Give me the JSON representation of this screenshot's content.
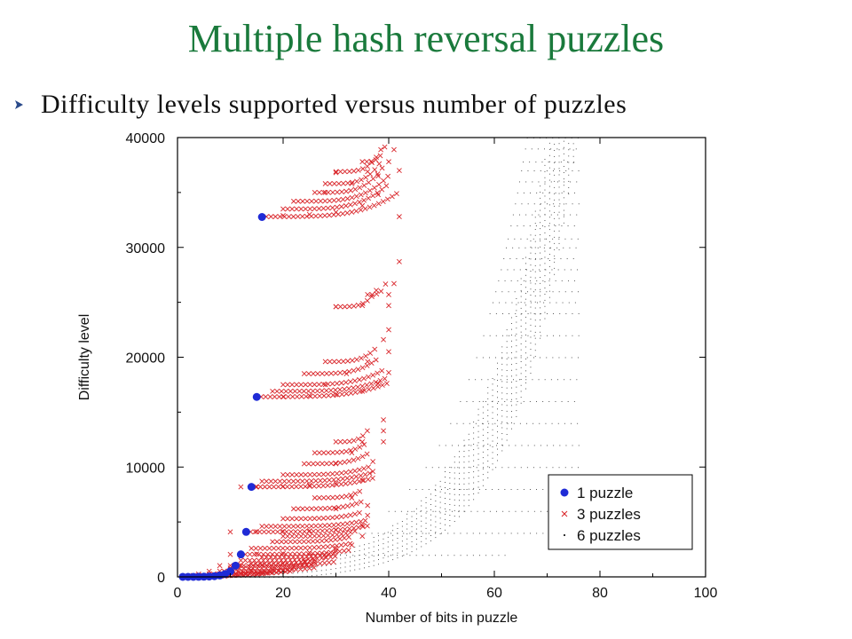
{
  "slide": {
    "title": "Multiple hash reversal puzzles",
    "bullet": "Difficulty levels supported versus number of puzzles"
  },
  "colors": {
    "title": "#1a7a3c",
    "series_1": "#1f2bd6",
    "series_3": "#d9262b",
    "series_6": "#333333",
    "bullet": "#2a4a8a"
  },
  "chart_data": {
    "type": "scatter",
    "title": "",
    "xlabel": "Number of bits in puzzle",
    "ylabel": "Difficulty level",
    "xlim": [
      0,
      100
    ],
    "ylim": [
      0,
      40000
    ],
    "xticks": [
      0,
      20,
      40,
      60,
      80,
      100
    ],
    "yticks": [
      0,
      10000,
      20000,
      30000,
      40000
    ],
    "grid": false,
    "legend_position": "bottom-right",
    "series": [
      {
        "name": "1 puzzle",
        "marker": "circle",
        "points": [
          [
            1,
            1
          ],
          [
            2,
            2
          ],
          [
            3,
            4
          ],
          [
            4,
            8
          ],
          [
            5,
            16
          ],
          [
            6,
            32
          ],
          [
            7,
            64
          ],
          [
            8,
            128
          ],
          [
            9,
            256
          ],
          [
            10,
            512
          ],
          [
            11,
            1024
          ],
          [
            12,
            2048
          ],
          [
            13,
            4096
          ],
          [
            14,
            8192
          ],
          [
            15,
            16384
          ],
          [
            16,
            32768
          ]
        ]
      },
      {
        "name": "3 puzzles",
        "marker": "x",
        "points": [
          [
            16,
            32768
          ],
          [
            20,
            32900
          ],
          [
            25,
            33000
          ],
          [
            30,
            33200
          ],
          [
            35,
            33800
          ],
          [
            38,
            34800
          ],
          [
            28,
            35000
          ],
          [
            33,
            35800
          ],
          [
            38,
            36500
          ],
          [
            40,
            37800
          ],
          [
            41,
            38900
          ],
          [
            42,
            37000
          ],
          [
            30,
            36800
          ],
          [
            36,
            36900
          ],
          [
            42,
            32800
          ],
          [
            42,
            28700
          ],
          [
            41,
            26700
          ],
          [
            40,
            25700
          ],
          [
            35,
            24700
          ],
          [
            30,
            24600
          ],
          [
            40,
            24700
          ],
          [
            15,
            16384
          ],
          [
            20,
            16400
          ],
          [
            25,
            16500
          ],
          [
            30,
            16600
          ],
          [
            35,
            16900
          ],
          [
            38,
            17600
          ],
          [
            40,
            18600
          ],
          [
            40,
            20500
          ],
          [
            39,
            21600
          ],
          [
            40,
            22500
          ],
          [
            32,
            18500
          ],
          [
            36,
            19600
          ],
          [
            28,
            17500
          ],
          [
            12,
            8192
          ],
          [
            15,
            8200
          ],
          [
            20,
            8250
          ],
          [
            25,
            8350
          ],
          [
            30,
            8500
          ],
          [
            35,
            8800
          ],
          [
            37,
            9600
          ],
          [
            37,
            10500
          ],
          [
            39,
            12300
          ],
          [
            39,
            13300
          ],
          [
            39,
            14300
          ],
          [
            30,
            10300
          ],
          [
            33,
            11300
          ],
          [
            35,
            12300
          ],
          [
            10,
            4096
          ],
          [
            15,
            4120
          ],
          [
            20,
            4150
          ],
          [
            25,
            4200
          ],
          [
            30,
            4300
          ],
          [
            35,
            4700
          ],
          [
            36,
            5600
          ],
          [
            36,
            6500
          ],
          [
            30,
            6200
          ],
          [
            33,
            7200
          ],
          [
            10,
            2048
          ],
          [
            15,
            2080
          ],
          [
            20,
            2120
          ],
          [
            25,
            2200
          ],
          [
            30,
            2400
          ],
          [
            33,
            2900
          ],
          [
            35,
            3700
          ],
          [
            8,
            1024
          ],
          [
            12,
            1050
          ],
          [
            16,
            1100
          ],
          [
            20,
            1200
          ],
          [
            24,
            1400
          ],
          [
            28,
            1800
          ],
          [
            30,
            2600
          ],
          [
            6,
            512
          ],
          [
            10,
            540
          ],
          [
            14,
            600
          ],
          [
            18,
            700
          ],
          [
            22,
            900
          ],
          [
            26,
            1300
          ],
          [
            4,
            256
          ],
          [
            8,
            280
          ],
          [
            12,
            330
          ],
          [
            16,
            420
          ],
          [
            20,
            600
          ],
          [
            3,
            128
          ],
          [
            7,
            150
          ],
          [
            11,
            200
          ],
          [
            15,
            300
          ],
          [
            2,
            64
          ],
          [
            6,
            80
          ],
          [
            10,
            120
          ],
          [
            1,
            32
          ],
          [
            5,
            40
          ],
          [
            9,
            60
          ]
        ]
      },
      {
        "name": "6 puzzles",
        "marker": "dot",
        "region": {
          "x_min": 2,
          "x_max": 76,
          "description_bands": "dense dots filling region between 3-puzzle curve and an exponential upper boundary"
        },
        "columns": [
          [
            20,
            0,
            3300
          ],
          [
            24,
            0,
            5000
          ],
          [
            28,
            0,
            7500
          ],
          [
            32,
            0,
            11000
          ],
          [
            36,
            0,
            15000
          ],
          [
            40,
            0,
            19000
          ],
          [
            44,
            0,
            23000
          ],
          [
            48,
            0,
            26000
          ],
          [
            52,
            0,
            29000
          ],
          [
            56,
            0,
            31500
          ],
          [
            60,
            0,
            34000
          ],
          [
            64,
            0,
            36500
          ],
          [
            68,
            0,
            38500
          ],
          [
            72,
            0,
            40000
          ],
          [
            76,
            0,
            40000
          ]
        ]
      }
    ]
  }
}
